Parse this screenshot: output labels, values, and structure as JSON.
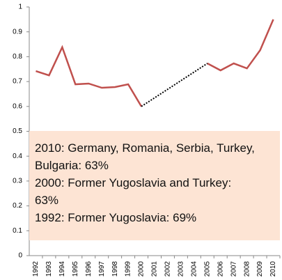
{
  "chart_data": {
    "type": "line",
    "categories": [
      "1992",
      "1993",
      "1994",
      "1995",
      "1996",
      "1997",
      "1998",
      "1999",
      "2000",
      "2001",
      "2002",
      "2003",
      "2004",
      "2005",
      "2006",
      "2007",
      "2008",
      "2009",
      "2010"
    ],
    "series": [
      {
        "color": "#c0504d",
        "values": [
          0.742,
          0.725,
          0.838,
          0.689,
          0.692,
          0.675,
          0.678,
          0.689,
          0.6,
          null,
          null,
          null,
          null,
          0.773,
          0.745,
          0.773,
          0.753,
          0.826,
          0.95
        ]
      }
    ],
    "gap_style": "dotted",
    "ylim": [
      0,
      1
    ],
    "yticks": [
      0,
      0.1,
      0.2,
      0.3,
      0.4,
      0.5,
      0.6,
      0.7,
      0.8,
      0.9,
      1
    ],
    "annotations": [
      "2010: Germany, Romania, Serbia, Turkey, Bulgaria: 63%",
      "2000: Former Yugoslavia and Turkey: 63%",
      "1992: Former Yugoslavia: 69%"
    ]
  }
}
